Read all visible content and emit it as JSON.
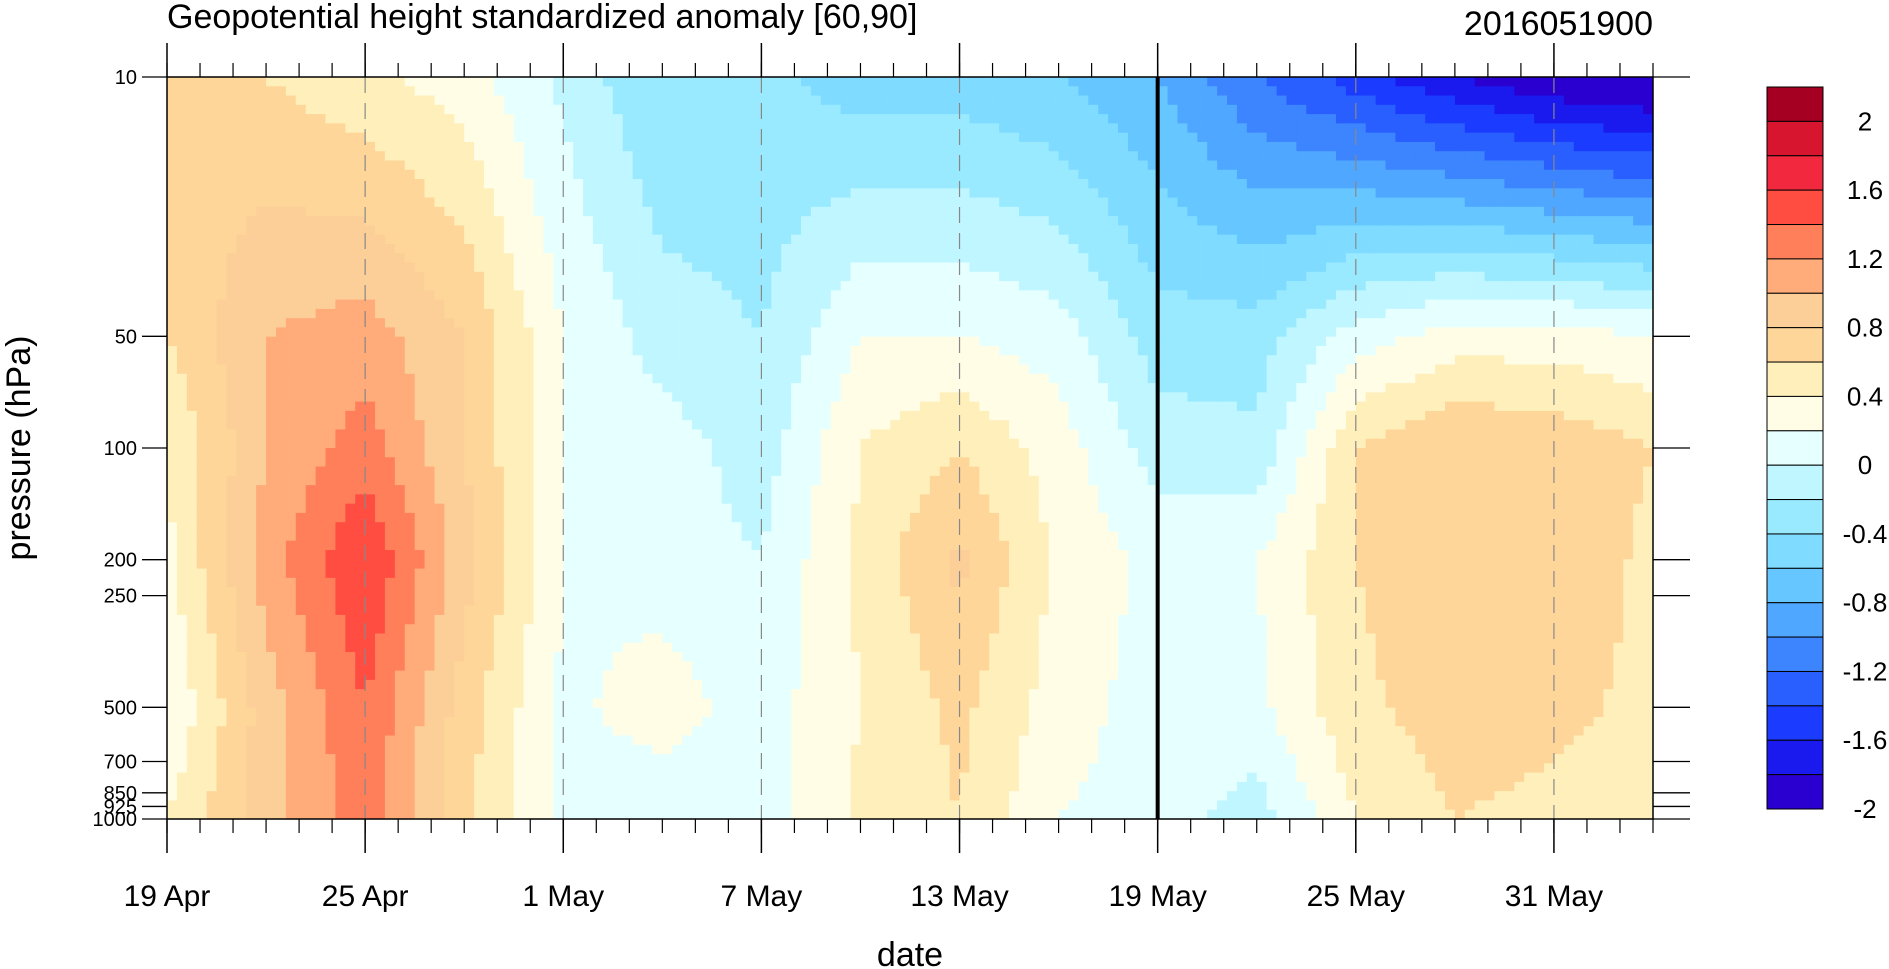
{
  "chart_data": {
    "type": "heatmap",
    "title": "Geopotential height standardized anomaly [60,90]",
    "date_stamp": "2016051900",
    "xlabel": "date",
    "ylabel": "pressure (hPa)",
    "x_axis": {
      "type": "date",
      "range": [
        "2016-04-19",
        "2016-06-03"
      ],
      "tick_labels": [
        "19 Apr",
        "25 Apr",
        "1 May",
        "7 May",
        "13 May",
        "19 May",
        "25 May",
        "31 May"
      ],
      "tick_dates": [
        "2016-04-19",
        "2016-04-25",
        "2016-05-01",
        "2016-05-07",
        "2016-05-13",
        "2016-05-19",
        "2016-05-25",
        "2016-05-31"
      ],
      "minor_ticks": "daily",
      "dashed_gridlines_at_major_ticks": true
    },
    "y_axis": {
      "scale": "log",
      "inverted": true,
      "range": [
        1000,
        10
      ],
      "tick_values": [
        10,
        50,
        100,
        200,
        250,
        500,
        700,
        850,
        925,
        1000
      ],
      "tick_labels": [
        "10",
        "50",
        "100",
        "200",
        "250",
        "500",
        "700",
        "850",
        "925",
        "1000"
      ]
    },
    "reference_line": {
      "date": "2016-05-19",
      "style": "solid black vertical line"
    },
    "colorbar": {
      "labels": [
        "2",
        "1.6",
        "1.2",
        "0.8",
        "0.4",
        "0",
        "-0.4",
        "-0.8",
        "-1.2",
        "-1.6",
        "-2"
      ],
      "colors": [
        "#a50021",
        "#d8152f",
        "#f2293e",
        "#ff4d42",
        "#ff7f5b",
        "#ffab7a",
        "#fccf98",
        "#ffd699",
        "#fff0bb",
        "#fffde6",
        "#e6ffff",
        "#bff6ff",
        "#99eaff",
        "#7fdbff",
        "#66c6ff",
        "#4fa7ff",
        "#3d85ff",
        "#2a5fff",
        "#1b3cff",
        "#1a1aee",
        "#2a00d0"
      ]
    },
    "anomaly_grid": {
      "levels_hpa": [
        10,
        50,
        100,
        200,
        500,
        1000
      ],
      "dates": [
        "2016-04-19",
        "2016-04-22",
        "2016-04-25",
        "2016-04-28",
        "2016-05-01",
        "2016-05-04",
        "2016-05-07",
        "2016-05-10",
        "2016-05-13",
        "2016-05-16",
        "2016-05-19",
        "2016-05-22",
        "2016-05-25",
        "2016-05-28",
        "2016-05-31",
        "2016-06-03"
      ],
      "values": [
        [
          0.7,
          0.5,
          0.35,
          0.2,
          -0.15,
          -0.5,
          -0.45,
          -0.6,
          -0.6,
          -0.7,
          -0.9,
          -1.3,
          -1.6,
          -1.9,
          -2.1,
          -2.2
        ],
        [
          0.5,
          0.9,
          1.0,
          0.7,
          0.1,
          -0.2,
          -0.3,
          0.1,
          0.1,
          0.0,
          -0.4,
          -0.4,
          0.0,
          0.2,
          0.2,
          0.1
        ],
        [
          0.3,
          0.9,
          1.2,
          0.7,
          0.1,
          0.0,
          -0.2,
          0.3,
          0.5,
          0.2,
          -0.2,
          -0.25,
          0.5,
          0.7,
          0.65,
          0.5
        ],
        [
          0.25,
          1.0,
          1.5,
          0.8,
          0.1,
          0.0,
          -0.1,
          0.35,
          0.75,
          0.25,
          0.05,
          0.1,
          0.5,
          0.7,
          0.65,
          0.45
        ],
        [
          0.1,
          0.8,
          1.3,
          0.6,
          0.05,
          0.2,
          0.0,
          0.3,
          0.55,
          0.2,
          0.0,
          0.05,
          0.45,
          0.6,
          0.55,
          0.45
        ],
        [
          0.3,
          0.8,
          1.2,
          0.55,
          0.05,
          -0.05,
          0.0,
          0.35,
          0.5,
          0.1,
          0.0,
          -0.2,
          0.3,
          0.5,
          0.45,
          0.35
        ]
      ]
    }
  }
}
